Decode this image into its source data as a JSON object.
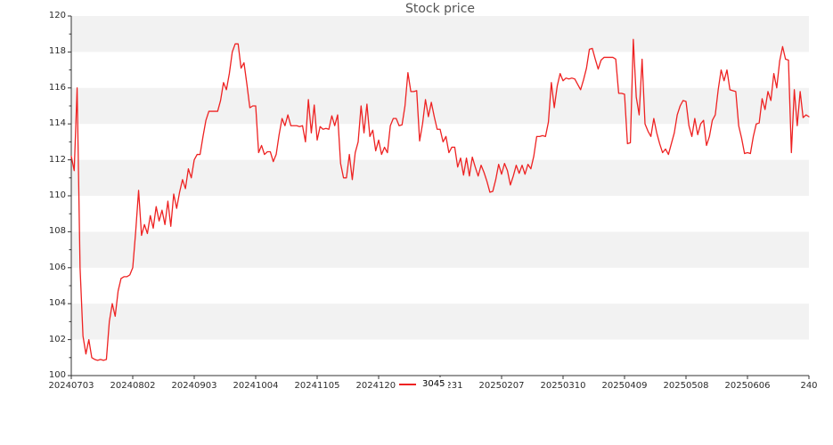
{
  "title": "Stock price",
  "legend": {
    "series_label": "3045"
  },
  "colors": {
    "line": "#ee2222",
    "band": "#f2f2f2",
    "spine": "#333333",
    "tick_text": "#2b2b2b",
    "title_text": "#545454"
  },
  "chart_data": {
    "type": "line",
    "title": "Stock price",
    "series_name": "3045",
    "legend_position": "bottom-center",
    "grid": "horizontal alternating bands",
    "ylim": [
      100,
      120
    ],
    "y_tick_labels": [
      "100",
      "102",
      "104",
      "106",
      "108",
      "110",
      "112",
      "114",
      "116",
      "118",
      "120"
    ],
    "x_tick_labels": [
      "20240703",
      "20240802",
      "20240903",
      "20241004",
      "20241105",
      "20241203",
      "20241231",
      "20250207",
      "20250310",
      "20250409",
      "20250508",
      "20250606",
      "240"
    ],
    "x_tick_every_n_points": 21,
    "gray_band_value_ranges": [
      [
        118,
        120
      ],
      [
        114,
        116
      ],
      [
        110,
        112
      ],
      [
        106,
        108
      ],
      [
        102,
        104
      ]
    ],
    "values": [
      112.2,
      111.4,
      116.0,
      106.0,
      102.2,
      101.2,
      102.0,
      101.0,
      100.9,
      100.85,
      100.9,
      100.85,
      100.9,
      103.0,
      104.0,
      103.3,
      104.7,
      105.4,
      105.5,
      105.5,
      105.6,
      106.0,
      108.0,
      110.3,
      107.8,
      108.4,
      107.9,
      108.9,
      108.2,
      109.4,
      108.6,
      109.2,
      108.4,
      109.7,
      108.3,
      110.1,
      109.3,
      110.2,
      110.9,
      110.4,
      111.5,
      111.0,
      112.0,
      112.3,
      112.3,
      113.3,
      114.2,
      114.7,
      114.7,
      114.7,
      114.7,
      115.3,
      116.3,
      115.9,
      116.8,
      118.0,
      118.45,
      118.45,
      117.1,
      117.4,
      116.2,
      114.9,
      115.0,
      115.0,
      112.4,
      112.8,
      112.3,
      112.45,
      112.45,
      111.9,
      112.3,
      113.4,
      114.3,
      113.9,
      114.5,
      113.9,
      113.9,
      113.9,
      113.85,
      113.9,
      113.0,
      115.35,
      113.5,
      115.05,
      113.1,
      113.85,
      113.7,
      113.75,
      113.7,
      114.45,
      113.9,
      114.5,
      111.8,
      111.0,
      111.0,
      112.3,
      110.9,
      112.4,
      113.0,
      115.0,
      113.5,
      115.1,
      113.3,
      113.65,
      112.5,
      113.1,
      112.3,
      112.7,
      112.4,
      113.9,
      114.3,
      114.3,
      113.9,
      113.95,
      115.0,
      116.85,
      115.8,
      115.8,
      115.85,
      113.05,
      114.0,
      115.35,
      114.4,
      115.2,
      114.4,
      113.7,
      113.7,
      113.0,
      113.3,
      112.4,
      112.7,
      112.7,
      111.6,
      112.1,
      111.15,
      112.1,
      111.1,
      112.15,
      111.6,
      111.1,
      111.7,
      111.3,
      110.8,
      110.2,
      110.25,
      110.9,
      111.75,
      111.2,
      111.8,
      111.4,
      110.6,
      111.1,
      111.7,
      111.25,
      111.7,
      111.2,
      111.75,
      111.5,
      112.2,
      113.3,
      113.3,
      113.35,
      113.3,
      114.1,
      116.3,
      114.9,
      116.1,
      116.8,
      116.4,
      116.55,
      116.5,
      116.55,
      116.5,
      116.2,
      115.9,
      116.45,
      117.1,
      118.15,
      118.2,
      117.6,
      117.05,
      117.55,
      117.7,
      117.7,
      117.7,
      117.7,
      117.6,
      115.7,
      115.7,
      115.65,
      112.9,
      112.95,
      118.7,
      115.5,
      114.5,
      117.6,
      114.0,
      113.6,
      113.3,
      114.3,
      113.5,
      112.9,
      112.4,
      112.6,
      112.3,
      112.9,
      113.5,
      114.5,
      115.0,
      115.3,
      115.25,
      113.9,
      113.3,
      114.3,
      113.4,
      114.0,
      114.2,
      112.8,
      113.3,
      114.2,
      114.5,
      115.9,
      117.0,
      116.4,
      117.0,
      115.9,
      115.85,
      115.8,
      113.9,
      113.2,
      112.35,
      112.4,
      112.35,
      113.3,
      114.0,
      114.05,
      115.4,
      114.8,
      115.8,
      115.3,
      116.8,
      116.0,
      117.5,
      118.3,
      117.6,
      117.55,
      112.4,
      115.9,
      113.9,
      115.8,
      114.35,
      114.5,
      114.4
    ]
  }
}
